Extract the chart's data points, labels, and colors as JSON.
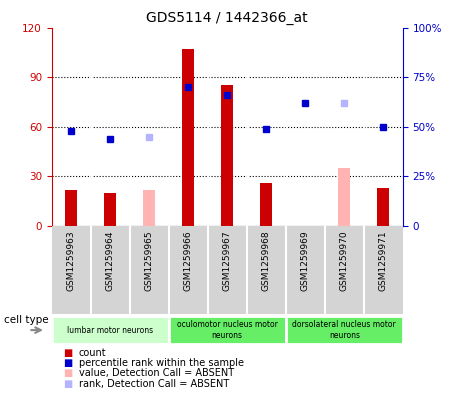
{
  "title": "GDS5114 / 1442366_at",
  "samples": [
    "GSM1259963",
    "GSM1259964",
    "GSM1259965",
    "GSM1259966",
    "GSM1259967",
    "GSM1259968",
    "GSM1259969",
    "GSM1259970",
    "GSM1259971"
  ],
  "count_values": [
    22,
    20,
    0,
    107,
    85,
    26,
    0,
    0,
    23
  ],
  "count_absent_values": [
    0,
    0,
    22,
    0,
    0,
    0,
    0,
    35,
    0
  ],
  "rank_values": [
    48,
    44,
    0,
    70,
    66,
    49,
    62,
    0,
    50
  ],
  "rank_absent_values": [
    0,
    0,
    45,
    0,
    0,
    0,
    0,
    62,
    0
  ],
  "count_color": "#cc0000",
  "count_absent_color": "#ffb3b3",
  "rank_color": "#0000cc",
  "rank_absent_color": "#b3b3ff",
  "ylim_left": [
    0,
    120
  ],
  "ylim_right": [
    0,
    100
  ],
  "yticks_left": [
    0,
    30,
    60,
    90,
    120
  ],
  "yticks_right": [
    0,
    25,
    50,
    75,
    100
  ],
  "ytick_labels_left": [
    "0",
    "30",
    "60",
    "90",
    "120"
  ],
  "ytick_labels_right": [
    "0",
    "25%",
    "50%",
    "75%",
    "100%"
  ],
  "cell_groups": [
    {
      "label": "lumbar motor neurons",
      "start": 0,
      "end": 3,
      "color": "#ccffcc"
    },
    {
      "label": "oculomotor nucleus motor\nneurons",
      "start": 3,
      "end": 6,
      "color": "#66ee66"
    },
    {
      "label": "dorsolateral nucleus motor\nneurons",
      "start": 6,
      "end": 9,
      "color": "#66ee66"
    }
  ],
  "cell_type_label": "cell type",
  "legend_items": [
    {
      "label": "count",
      "color": "#cc0000"
    },
    {
      "label": "percentile rank within the sample",
      "color": "#0000cc"
    },
    {
      "label": "value, Detection Call = ABSENT",
      "color": "#ffb3b3"
    },
    {
      "label": "rank, Detection Call = ABSENT",
      "color": "#b3b3ff"
    }
  ],
  "bar_width": 0.25,
  "background_color": "#ffffff",
  "plot_bg_color": "#ffffff",
  "label_bg_color": "#d4d4d4",
  "grid_color": "#000000"
}
